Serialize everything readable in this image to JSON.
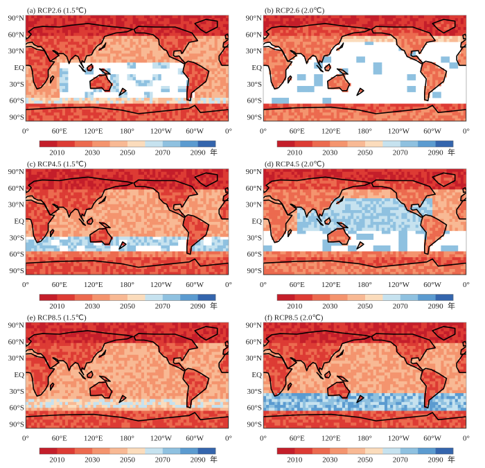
{
  "panels": [
    {
      "label": "(a) RCP2.6 (1.5℃)"
    },
    {
      "label": "(b) RCP2.6 (2.0℃)"
    },
    {
      "label": "(c) RCP4.5 (1.5℃)"
    },
    {
      "label": "(d) RCP4.5 (2.0℃)"
    },
    {
      "label": "(e) RCP8.5 (1.5℃)"
    },
    {
      "label": "(f) RCP8.5 (2.0℃)"
    }
  ],
  "lat_ticks": [
    "90°N",
    "60°N",
    "30°N",
    "EQ",
    "30°S",
    "60°S",
    "90°S"
  ],
  "lon_ticks": [
    "0°",
    "60°E",
    "120°E",
    "180°",
    "120°W",
    "60°W",
    "0°"
  ],
  "colorbar": {
    "labels": [
      "2010",
      "2030",
      "2050",
      "2070",
      "2090"
    ],
    "unit": "年",
    "colors": [
      "#c41e2a",
      "#dd3b34",
      "#ec6a4f",
      "#f4946e",
      "#f8b994",
      "#fbdcbc",
      "#c6e2ef",
      "#8fc1e0",
      "#5b9bd0",
      "#3465ad"
    ]
  }
}
